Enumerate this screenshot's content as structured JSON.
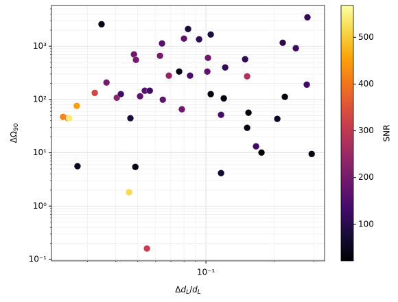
{
  "chart_data": {
    "type": "scatter",
    "xlabel": [
      "Δ",
      "d",
      "L",
      "/",
      "d",
      "L"
    ],
    "ylabel": [
      "ΔΩ",
      "90"
    ],
    "xscale": "log",
    "yscale": "log",
    "grid": true,
    "minor_grid": true,
    "xlim": [
      0.0208,
      0.334
    ],
    "ylim": [
      0.094,
      5800
    ],
    "xticks": [
      {
        "value": 0.1,
        "label": "10⁻¹"
      }
    ],
    "yticks": [
      {
        "value": 0.1,
        "label": "10⁻¹"
      },
      {
        "value": 1,
        "label": "10⁰"
      },
      {
        "value": 10,
        "label": "10¹"
      },
      {
        "value": 100,
        "label": "10²"
      },
      {
        "value": 1000,
        "label": "10³"
      }
    ],
    "colormap": "inferno",
    "colorbar": {
      "label": "SNR",
      "lim": [
        22,
        568
      ],
      "ticks": [
        100,
        200,
        300,
        400,
        500
      ]
    },
    "x": [
      0.0346,
      0.0234,
      0.0246,
      0.0249,
      0.0269,
      0.0271,
      0.0323,
      0.0364,
      0.0404,
      0.0421,
      0.0464,
      0.0458,
      0.0481,
      0.0488,
      0.0491,
      0.0512,
      0.0537,
      0.0565,
      0.0549,
      0.0627,
      0.064,
      0.0645,
      0.0686,
      0.0762,
      0.0783,
      0.08,
      0.0834,
      0.0851,
      0.0933,
      0.1014,
      0.1021,
      0.105,
      0.105,
      0.1166,
      0.1166,
      0.1199,
      0.1216,
      0.1489,
      0.152,
      0.152,
      0.1541,
      0.1664,
      0.1759,
      0.2066,
      0.2183,
      0.223,
      0.2494,
      0.2806,
      0.2787,
      0.293
    ],
    "y": [
      2580,
      47.2,
      44.5,
      44.5,
      75.9,
      5.6,
      133,
      208,
      108,
      126,
      44.5,
      1.82,
      701,
      5.43,
      553,
      115,
      146,
      146,
      0.16,
      661,
      1125,
      99,
      280,
      334,
      65.5,
      1386,
      2100,
      280,
      1345,
      334,
      604,
      1656,
      126,
      51.6,
      4.16,
      105,
      399,
      569,
      272,
      29.4,
      56.5,
      13.2,
      10.1,
      43.3,
      1160,
      112,
      915,
      3480,
      190,
      9.5
    ],
    "snr": [
      40,
      420,
      380,
      540,
      450,
      50,
      330,
      200,
      230,
      130,
      80,
      520,
      190,
      40,
      200,
      170,
      160,
      130,
      310,
      200,
      160,
      170,
      240,
      40,
      190,
      170,
      80,
      140,
      110,
      170,
      190,
      90,
      30,
      140,
      70,
      30,
      110,
      110,
      280,
      30,
      30,
      130,
      25,
      60,
      100,
      30,
      120,
      110,
      130,
      30
    ]
  }
}
